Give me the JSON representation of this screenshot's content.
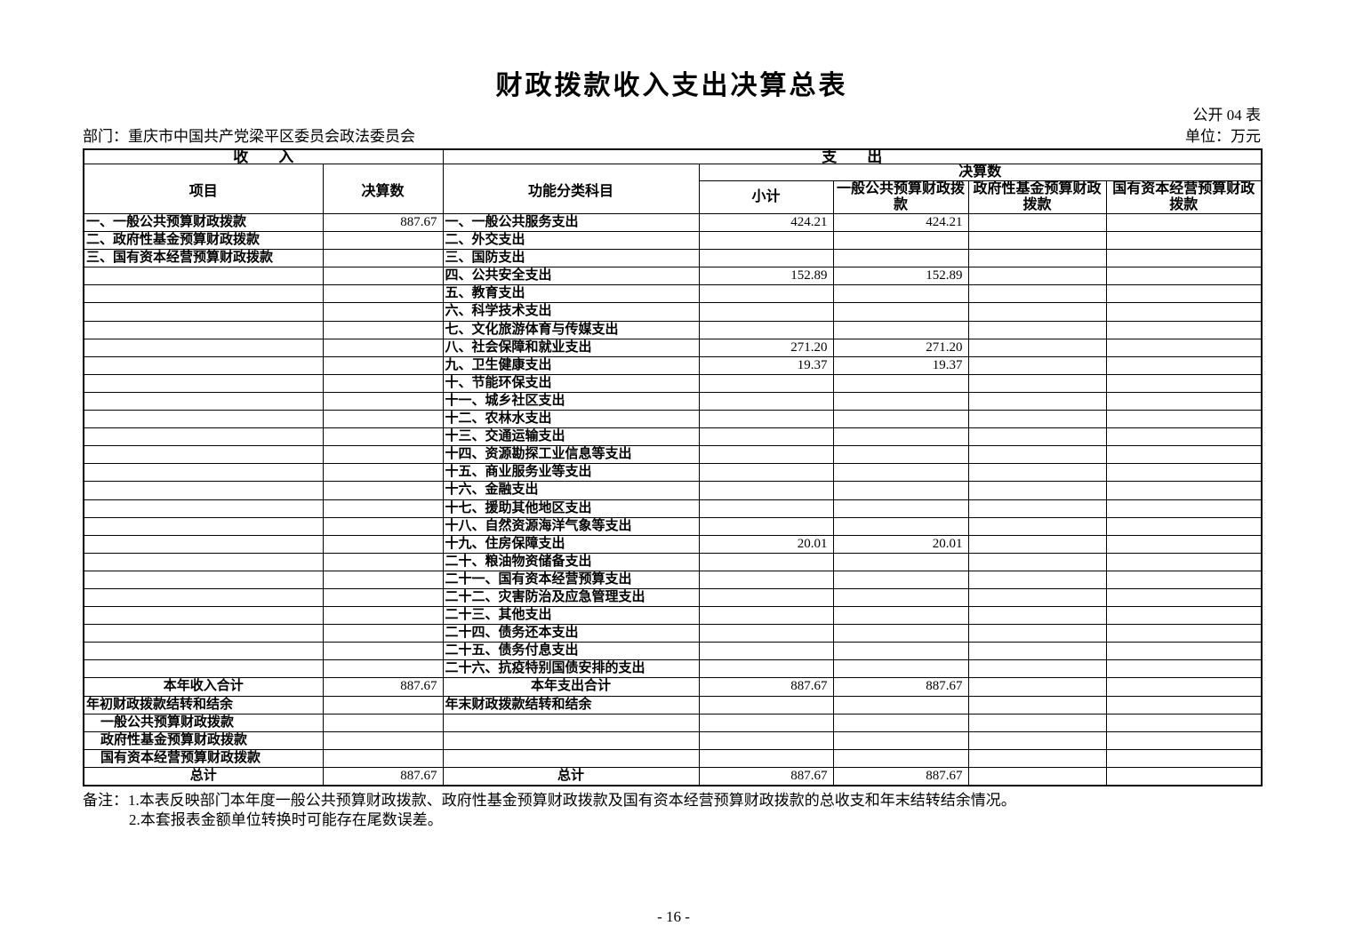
{
  "page": {
    "title": "财政拨款收入支出决算总表",
    "form_code": "公开 04 表",
    "department_label": "部门：重庆市中国共产党梁平区委员会政法委员会",
    "unit_label": "单位：万元",
    "notes": {
      "line1": "备注：1.本表反映部门本年度一般公共预算财政拨款、政府性基金预算财政拨款及国有资本经营预算财政拨款的总收支和年末结转结余情况。",
      "line2": "2.本套报表金额单位转换时可能存在尾数误差。"
    },
    "page_number": "- 16 -"
  },
  "table": {
    "header": {
      "income_group": "收　　入",
      "expense_group": "支　　出",
      "income_item_col": "项目",
      "income_value_col": "决算数",
      "expense_item_col": "功能分类科目",
      "expense_value_group": "决算数",
      "col_subtotal": "小计",
      "col_general_budget": "一般公共预算财政拨款",
      "col_gov_fund": "政府性基金预算财政拨款",
      "col_state_capital": "国有资本经营预算财政拨款"
    },
    "rows": [
      {
        "income": "一、一般公共预算财政拨款",
        "income_value": "887.67",
        "expense": "一、一般公共服务支出",
        "subtotal": "424.21",
        "general": "424.21"
      },
      {
        "income": "二、政府性基金预算财政拨款",
        "expense": "二、外交支出"
      },
      {
        "income": "三、国有资本经营预算财政拨款",
        "expense": "三、国防支出"
      },
      {
        "expense": "四、公共安全支出",
        "subtotal": "152.89",
        "general": "152.89"
      },
      {
        "expense": "五、教育支出"
      },
      {
        "expense": "六、科学技术支出"
      },
      {
        "expense": "七、文化旅游体育与传媒支出"
      },
      {
        "expense": "八、社会保障和就业支出",
        "subtotal": "271.20",
        "general": "271.20"
      },
      {
        "expense": "九、卫生健康支出",
        "subtotal": "19.37",
        "general": "19.37"
      },
      {
        "expense": "十、节能环保支出"
      },
      {
        "expense": "十一、城乡社区支出"
      },
      {
        "expense": "十二、农林水支出"
      },
      {
        "expense": "十三、交通运输支出"
      },
      {
        "expense": "十四、资源勘探工业信息等支出"
      },
      {
        "expense": "十五、商业服务业等支出"
      },
      {
        "expense": "十六、金融支出"
      },
      {
        "expense": "十七、援助其他地区支出"
      },
      {
        "expense": "十八、自然资源海洋气象等支出"
      },
      {
        "expense": "十九、住房保障支出",
        "subtotal": "20.01",
        "general": "20.01"
      },
      {
        "expense": "二十、粮油物资储备支出"
      },
      {
        "expense": "二十一、国有资本经营预算支出"
      },
      {
        "expense": "二十二、灾害防治及应急管理支出"
      },
      {
        "expense": "二十三、其他支出"
      },
      {
        "expense": "二十四、债务还本支出"
      },
      {
        "expense": "二十五、债务付息支出"
      },
      {
        "expense": "二十六、抗疫特别国债安排的支出"
      },
      {
        "income": "本年收入合计",
        "income_value": "887.67",
        "income_align": "center",
        "expense": "本年支出合计",
        "expense_align": "center",
        "subtotal": "887.67",
        "general": "887.67"
      },
      {
        "income": "年初财政拨款结转和结余",
        "expense": "年末财政拨款结转和结余"
      },
      {
        "income": "一般公共预算财政拨款",
        "income_align": "indent"
      },
      {
        "income": "政府性基金预算财政拨款",
        "income_align": "indent"
      },
      {
        "income": "国有资本经营预算财政拨款",
        "income_align": "indent"
      },
      {
        "income": "总计",
        "income_value": "887.67",
        "income_align": "center",
        "expense": "总计",
        "expense_align": "center",
        "subtotal": "887.67",
        "general": "887.67"
      }
    ]
  }
}
